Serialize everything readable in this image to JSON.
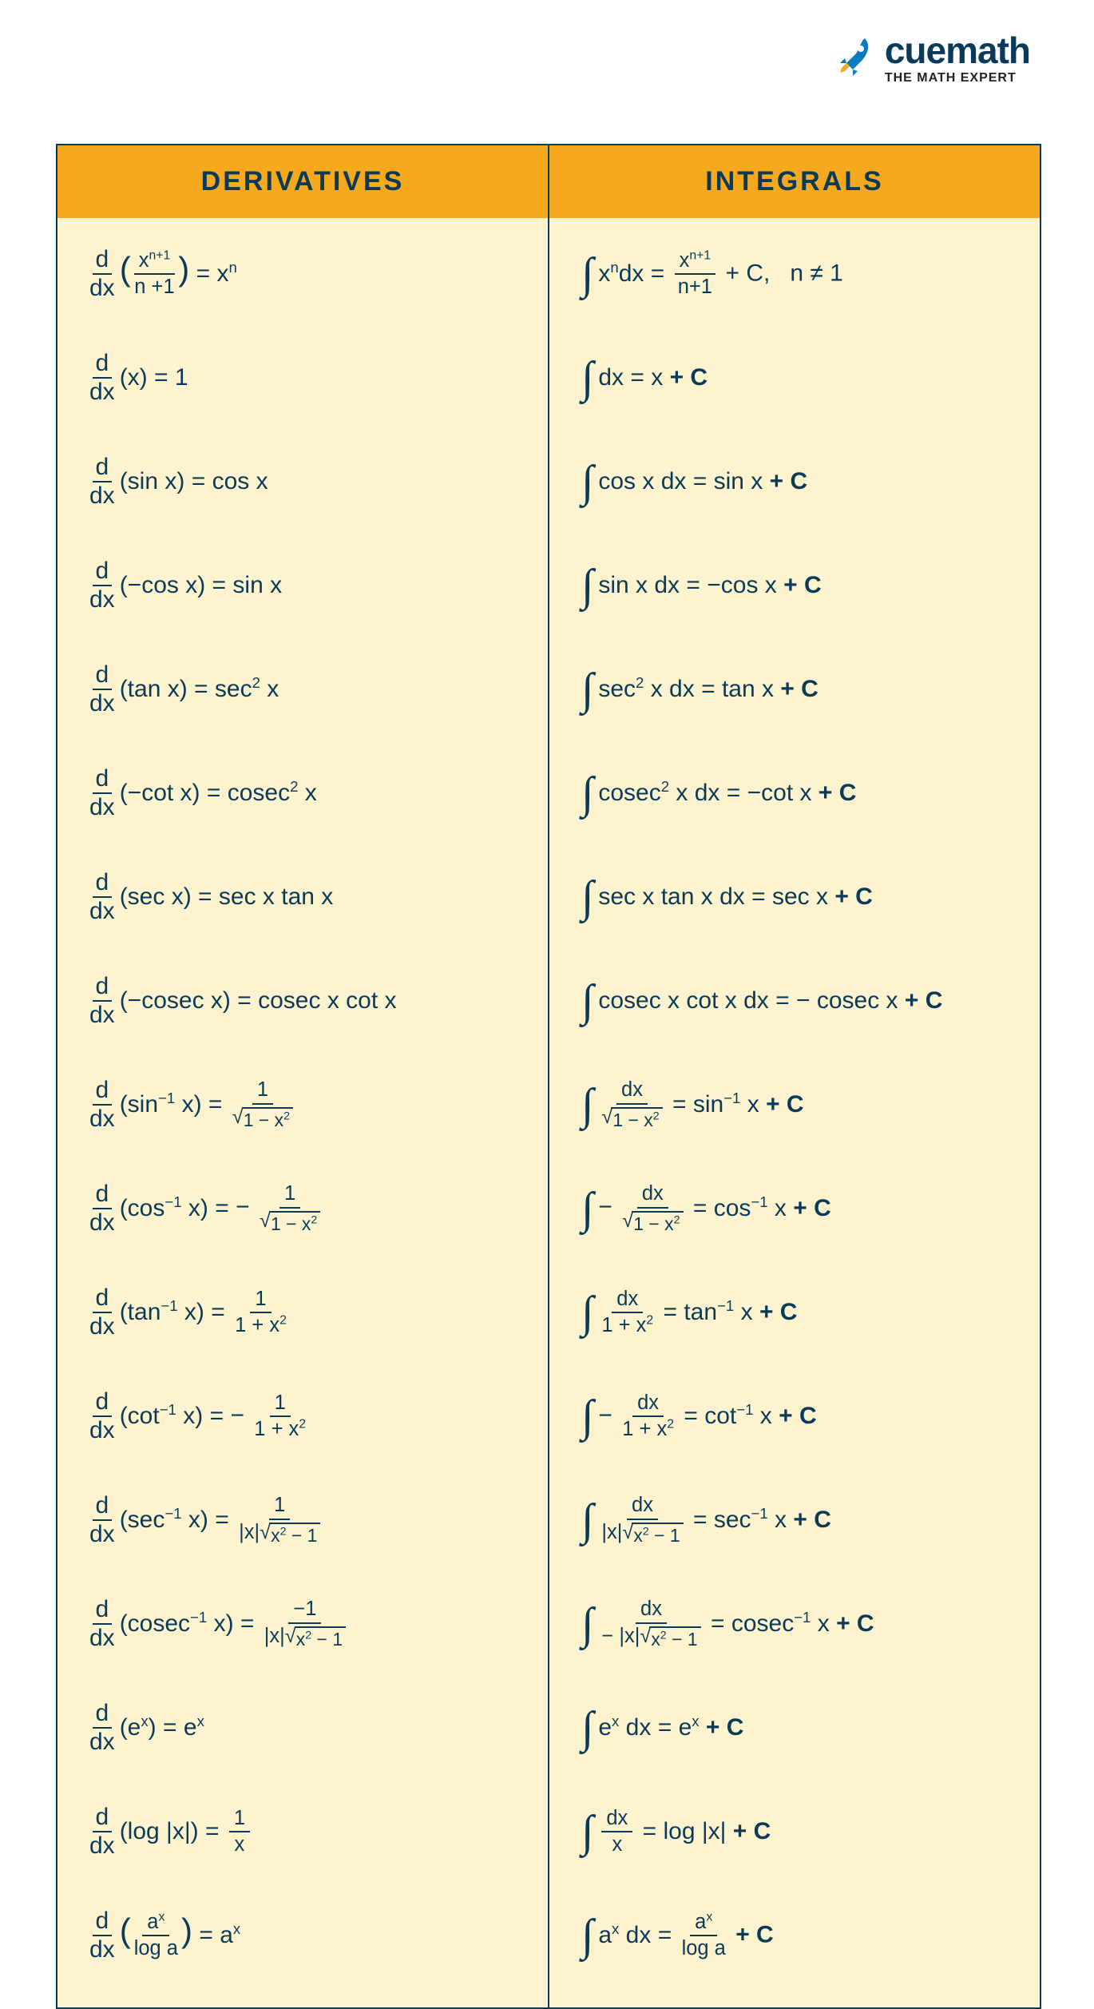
{
  "brand": {
    "name": "cuemath",
    "tagline": "THE MATH EXPERT",
    "name_color": "#093a5a",
    "icon_color": "#0a7bbd",
    "icon_accent": "#f6a91c"
  },
  "colors": {
    "header_bg": "#f6a91c",
    "body_bg": "#fdf4cf",
    "border": "#0a3a58",
    "text": "#0a3a58",
    "page_bg": "#ffffff"
  },
  "typography": {
    "header_fontsize": 34,
    "formula_fontsize": 30,
    "brand_fontsize": 46,
    "tagline_fontsize": 16
  },
  "table": {
    "headers": [
      "DERIVATIVES",
      "INTEGRALS"
    ],
    "rows": [
      {
        "deriv": {
          "op": "d/dx",
          "arg_html": "<span class='paren'>(</span><span class='frac'><span class='fnum'>x<sup>n+1</sup></span><span class='fden'>n +1</span></span><span class='paren'>)</span>",
          "result_html": "x<sup>n</sup>"
        },
        "integ": {
          "integrand_html": "x<sup>n</sup>dx",
          "result_html": "<span class='frac'><span class='fnum'>x<sup>n+1</sup></span><span class='fden'>n+1</span></span> + C,&nbsp;&nbsp; n ≠ 1"
        }
      },
      {
        "deriv": {
          "op": "d/dx",
          "arg_html": "(x)",
          "result_html": "1"
        },
        "integ": {
          "integrand_html": "dx",
          "result_html": "x <span class='plusC'>+ C</span>"
        }
      },
      {
        "deriv": {
          "op": "d/dx",
          "arg_html": "(sin x)",
          "result_html": "cos x"
        },
        "integ": {
          "integrand_html": "cos x dx",
          "result_html": "sin x <span class='plusC'>+ C</span>"
        }
      },
      {
        "deriv": {
          "op": "d/dx",
          "arg_html": "(−cos x)",
          "result_html": "sin x"
        },
        "integ": {
          "integrand_html": "sin x dx",
          "result_html": "−cos x <span class='plusC'>+ C</span>"
        }
      },
      {
        "deriv": {
          "op": "d/dx",
          "arg_html": "(tan x)",
          "result_html": "sec<sup>2</sup> x"
        },
        "integ": {
          "integrand_html": "sec<sup>2</sup> x dx",
          "result_html": "tan x <span class='plusC'>+ C</span>"
        }
      },
      {
        "deriv": {
          "op": "d/dx",
          "arg_html": "(−cot x)",
          "result_html": "cosec<sup>2</sup> x"
        },
        "integ": {
          "integrand_html": "cosec<sup>2</sup> x dx",
          "result_html": "−cot x <span class='plusC'>+ C</span>"
        }
      },
      {
        "deriv": {
          "op": "d/dx",
          "arg_html": "(sec x)",
          "result_html": "sec x tan x"
        },
        "integ": {
          "integrand_html": "sec x tan x dx",
          "result_html": "sec x <span class='plusC'>+ C</span>"
        }
      },
      {
        "deriv": {
          "op": "d/dx",
          "arg_html": "(−cosec x)",
          "result_html": "cosec x cot x"
        },
        "integ": {
          "integrand_html": "cosec x cot x dx",
          "result_html": "− cosec x <span class='plusC'>+ C</span>"
        }
      },
      {
        "deriv": {
          "op": "d/dx",
          "arg_html": "(sin<sup>−1</sup> x)",
          "result_html": "<span class='frac'><span class='fnum'>1</span><span class='fden'><span class='sqrt'><span class='sqrt-sign'>√</span><span class='sqrt-body'>1 − x<sup>2</sup></span></span></span></span>"
        },
        "integ": {
          "integrand_html": "<span class='frac'><span class='fnum'>dx</span><span class='fden'><span class='sqrt'><span class='sqrt-sign'>√</span><span class='sqrt-body'>1 − x<sup>2</sup></span></span></span></span>",
          "result_html": "sin<sup>−1</sup> x <span class='plusC'>+ C</span>"
        }
      },
      {
        "deriv": {
          "op": "d/dx",
          "arg_html": "(cos<sup>−1</sup> x)",
          "result_html": "−&nbsp;<span class='frac'><span class='fnum'>1</span><span class='fden'><span class='sqrt'><span class='sqrt-sign'>√</span><span class='sqrt-body'>1 − x<sup>2</sup></span></span></span></span>"
        },
        "integ": {
          "integrand_html": "−&nbsp;<span class='frac'><span class='fnum'>dx</span><span class='fden'><span class='sqrt'><span class='sqrt-sign'>√</span><span class='sqrt-body'>1 − x<sup>2</sup></span></span></span></span>",
          "result_html": "cos<sup>−1</sup> x <span class='plusC'>+ C</span>"
        }
      },
      {
        "deriv": {
          "op": "d/dx",
          "arg_html": "(tan<sup>−1</sup> x)",
          "result_html": "<span class='frac'><span class='fnum'>1</span><span class='fden'>1 + x<sup>2</sup></span></span>"
        },
        "integ": {
          "integrand_html": "<span class='frac'><span class='fnum'>dx</span><span class='fden'>1 + x<sup>2</sup></span></span>",
          "result_html": "tan<sup>−1</sup> x <span class='plusC'>+ C</span>"
        }
      },
      {
        "deriv": {
          "op": "d/dx",
          "arg_html": "(cot<sup>−1</sup> x)",
          "result_html": "−&nbsp;<span class='frac'><span class='fnum'>1</span><span class='fden'>1 + x<sup>2</sup></span></span>"
        },
        "integ": {
          "integrand_html": "−&nbsp;<span class='frac'><span class='fnum'>dx</span><span class='fden'>1 + x<sup>2</sup></span></span>",
          "result_html": "cot<sup>−1</sup> x <span class='plusC'>+ C</span>"
        }
      },
      {
        "deriv": {
          "op": "d/dx",
          "arg_html": "(sec<sup>−1</sup> x)",
          "result_html": "<span class='frac'><span class='fnum'>1</span><span class='fden'>|x|<span class='sqrt'><span class='sqrt-sign'>√</span><span class='sqrt-body'>x<sup>2</sup> − 1</span></span></span></span>"
        },
        "integ": {
          "integrand_html": "<span class='frac'><span class='fnum'>dx</span><span class='fden'>|x|<span class='sqrt'><span class='sqrt-sign'>√</span><span class='sqrt-body'>x<sup>2</sup> − 1</span></span></span></span>",
          "result_html": "sec<sup>−1</sup> x <span class='plusC'>+ C</span>"
        }
      },
      {
        "deriv": {
          "op": "d/dx",
          "arg_html": "(cosec<sup>−1</sup> x)",
          "result_html": "<span class='frac'><span class='fnum'>−1</span><span class='fden'>|x|<span class='sqrt'><span class='sqrt-sign'>√</span><span class='sqrt-body'>x<sup>2</sup> − 1</span></span></span></span>"
        },
        "integ": {
          "integrand_html": "<span class='frac'><span class='fnum'>dx</span><span class='fden'>− |x|<span class='sqrt'><span class='sqrt-sign'>√</span><span class='sqrt-body'>x<sup>2</sup> − 1</span></span></span></span>",
          "result_html": "cosec<sup>−1</sup> x <span class='plusC'>+ C</span>"
        }
      },
      {
        "deriv": {
          "op": "d/dx",
          "arg_html": "(e<sup>x</sup>)",
          "result_html": "e<sup>x</sup>"
        },
        "integ": {
          "integrand_html": "e<sup>x</sup> dx",
          "result_html": "e<sup>x</sup> <span class='plusC'>+ C</span>"
        }
      },
      {
        "deriv": {
          "op": "d/dx",
          "arg_html": "(log |x|)",
          "result_html": "<span class='frac'><span class='fnum'>1</span><span class='fden'>x</span></span>"
        },
        "integ": {
          "integrand_html": "<span class='frac'><span class='fnum'>dx</span><span class='fden'>x</span></span>",
          "result_html": "log |x| <span class='plusC'>+ C</span>"
        }
      },
      {
        "deriv": {
          "op": "d/dx",
          "arg_html": "<span class='paren'>(</span><span class='frac'><span class='fnum'>a<sup>x</sup></span><span class='fden'>log a</span></span><span class='paren'>)</span>",
          "result_html": "a<sup>x</sup>"
        },
        "integ": {
          "integrand_html": "a<sup>x</sup> dx",
          "result_html": "<span class='frac'><span class='fnum'>a<sup>x</sup></span><span class='fden'>log a</span></span> <span class='plusC'>+ C</span>"
        }
      }
    ]
  }
}
